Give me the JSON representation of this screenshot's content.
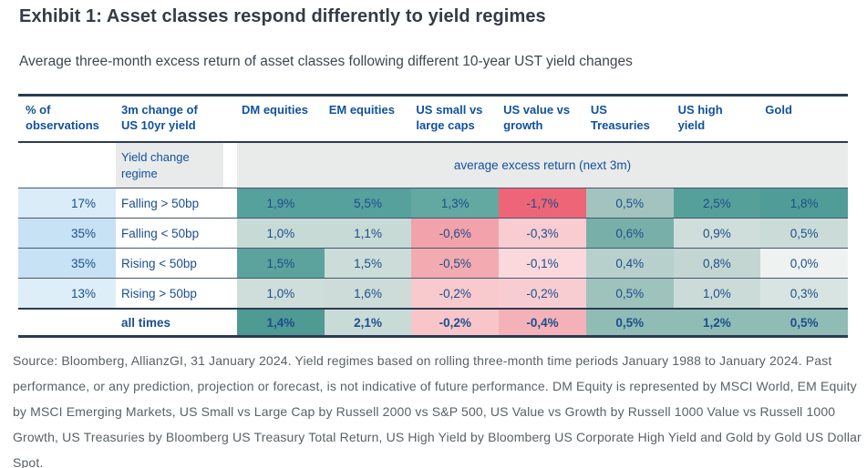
{
  "header": {
    "title": "Exhibit 1: Asset classes respond differently to yield regimes",
    "subtitle": "Average three-month excess return of asset classes following different 10-year UST yield changes"
  },
  "table": {
    "columns": [
      "% of\nobservations",
      "3m change of\nUS 10yr yield",
      "DM equities",
      "EM equities",
      "US small vs\nlarge caps",
      "US value vs\ngrowth",
      "US\nTreasuries",
      "US high\nyield",
      "Gold"
    ],
    "subheader": {
      "regime_label": "Yield change\nregime",
      "band_label": "average excess return (next 3m)"
    },
    "rows": [
      {
        "obs": "17%",
        "obs_bg": "#d9ecf8",
        "regime": "Falling > 50bp",
        "cells": [
          {
            "v": "1,9%",
            "bg": "#56a19b"
          },
          {
            "v": "5,5%",
            "bg": "#56a19b"
          },
          {
            "v": "1,3%",
            "bg": "#63a8a1"
          },
          {
            "v": "-1,7%",
            "bg": "#ee6577"
          },
          {
            "v": "0,5%",
            "bg": "#a3c4be"
          },
          {
            "v": "2,5%",
            "bg": "#56a09a"
          },
          {
            "v": "1,8%",
            "bg": "#4f9d96"
          }
        ]
      },
      {
        "obs": "35%",
        "obs_bg": "#c6e2f4",
        "regime": "Falling < 50bp",
        "cells": [
          {
            "v": "1,0%",
            "bg": "#c7dad6"
          },
          {
            "v": "1,1%",
            "bg": "#c7dad6"
          },
          {
            "v": "-0,6%",
            "bg": "#f2a2aa"
          },
          {
            "v": "-0,3%",
            "bg": "#f8ccd0"
          },
          {
            "v": "0,6%",
            "bg": "#78b0a9"
          },
          {
            "v": "0,9%",
            "bg": "#cfdeda"
          },
          {
            "v": "0,5%",
            "bg": "#cbdcd8"
          }
        ]
      },
      {
        "obs": "35%",
        "obs_bg": "#c6e2f4",
        "regime": "Rising < 50bp",
        "cells": [
          {
            "v": "1,5%",
            "bg": "#5ba39c"
          },
          {
            "v": "1,5%",
            "bg": "#ccdcd8"
          },
          {
            "v": "-0,5%",
            "bg": "#f3aab1"
          },
          {
            "v": "-0,1%",
            "bg": "#fad8db"
          },
          {
            "v": "0,4%",
            "bg": "#b8d0cb"
          },
          {
            "v": "0,8%",
            "bg": "#c3d6d2"
          },
          {
            "v": "0,0%",
            "bg": "#eef2f1"
          }
        ]
      },
      {
        "obs": "13%",
        "obs_bg": "#ddeef9",
        "regime": "Rising > 50bp",
        "cells": [
          {
            "v": "1,0%",
            "bg": "#cfdeda"
          },
          {
            "v": "1,6%",
            "bg": "#cddcd8"
          },
          {
            "v": "-0,2%",
            "bg": "#f8c9cd"
          },
          {
            "v": "-0,2%",
            "bg": "#f8cdd1"
          },
          {
            "v": "0,5%",
            "bg": "#9ec2bc"
          },
          {
            "v": "1,0%",
            "bg": "#cbdcd8"
          },
          {
            "v": "0,3%",
            "bg": "#d8e4e1"
          }
        ]
      }
    ],
    "total_row": {
      "obs": "",
      "obs_bg": "#ffffff",
      "regime": "all times",
      "cells": [
        {
          "v": "1,4%",
          "bg": "#4f9a93"
        },
        {
          "v": "2,1%",
          "bg": "#c9dbd7"
        },
        {
          "v": "-0,2%",
          "bg": "#f8c5c9"
        },
        {
          "v": "-0,4%",
          "bg": "#f4b2b8"
        },
        {
          "v": "0,5%",
          "bg": "#8fbcb5"
        },
        {
          "v": "1,2%",
          "bg": "#8fbcb5"
        },
        {
          "v": "0,5%",
          "bg": "#8fbcb5"
        }
      ]
    }
  },
  "source": {
    "text": "Source: Bloomberg, AllianzGI, 31 January 2024. Yield regimes based on rolling three-month time periods January 1988 to January 2024. Past performance, or any prediction, projection or forecast, is not indicative of future performance. DM Equity is represented by MSCI World, EM Equity by MSCI Emerging Markets, US Small vs Large Cap by Russell 2000 vs S&P 500, US Value vs Growth by Russell 1000 Value vs Russell 1000 Growth, US Treasuries by Bloomberg US Treasury Total Return, US High Yield by Bloomberg US Corporate High Yield and Gold by Gold US Dollar Spot."
  },
  "colors": {
    "header_text_blue": "#10519e",
    "cell_text_blue": "#1d4e8c",
    "positive_teal_max": "#4f9a93",
    "negative_red_max": "#ee6577",
    "subheader_gray": "#e9eaea",
    "obs_blue_light": "#d9ecf8",
    "obs_blue_dark": "#c6e2f4",
    "rule_dark": "#2c3b52",
    "rule_thin": "#47576f"
  },
  "chart_data": {
    "type": "table",
    "title": "Exhibit 1: Asset classes respond differently to yield regimes",
    "subtitle": "Average three-month excess return of asset classes following different 10-year UST yield changes",
    "band_label": "average excess return (next 3m)",
    "row_labels": [
      "Falling > 50bp",
      "Falling < 50bp",
      "Rising < 50bp",
      "Rising > 50bp",
      "all times"
    ],
    "pct_of_observations": [
      17,
      35,
      35,
      13,
      null
    ],
    "columns": [
      "DM equities",
      "EM equities",
      "US small vs large caps",
      "US value vs growth",
      "US Treasuries",
      "US high yield",
      "Gold"
    ],
    "values_pct": [
      [
        1.9,
        5.5,
        1.3,
        -1.7,
        0.5,
        2.5,
        1.8
      ],
      [
        1.0,
        1.1,
        -0.6,
        -0.3,
        0.6,
        0.9,
        0.5
      ],
      [
        1.5,
        1.5,
        -0.5,
        -0.1,
        0.4,
        0.8,
        0.0
      ],
      [
        1.0,
        1.6,
        -0.2,
        -0.2,
        0.5,
        1.0,
        0.3
      ],
      [
        1.4,
        2.1,
        -0.2,
        -0.4,
        0.5,
        1.2,
        0.5
      ]
    ],
    "value_unit": "percent, average 3-month excess return",
    "layout_hints": "heatmap shading per column: teal = positive, pink/red = negative"
  }
}
